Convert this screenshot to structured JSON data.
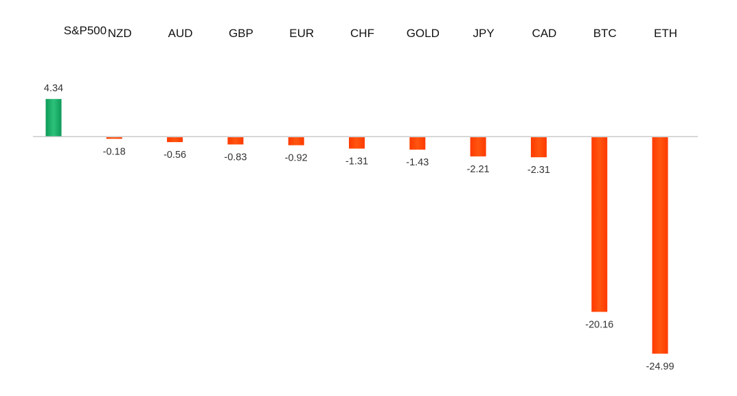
{
  "chart_data": {
    "type": "bar",
    "categories": [
      "S&P500",
      "NZD",
      "AUD",
      "GBP",
      "EUR",
      "CHF",
      "GOLD",
      "JPY",
      "CAD",
      "BTC",
      "ETH"
    ],
    "values": [
      4.34,
      -0.18,
      -0.56,
      -0.83,
      -0.92,
      -1.31,
      -1.43,
      -2.21,
      -2.31,
      -20.16,
      -24.99
    ],
    "value_labels": [
      "4.34",
      "-0.18",
      "-0.56",
      "-0.83",
      "-0.92",
      "-1.31",
      "-1.43",
      "-2.21",
      "-2.31",
      "-20.16",
      "-24.99"
    ],
    "ylim": [
      -25.5,
      4.5
    ],
    "grid": false,
    "legend": "none",
    "category_label_position": "top",
    "colors": {
      "positive": "#1db36b",
      "positive_dark": "#0e9a58",
      "negative": "#ff4000",
      "negative_light": "#ff6a1f",
      "axis": "#bfbfbf"
    }
  }
}
